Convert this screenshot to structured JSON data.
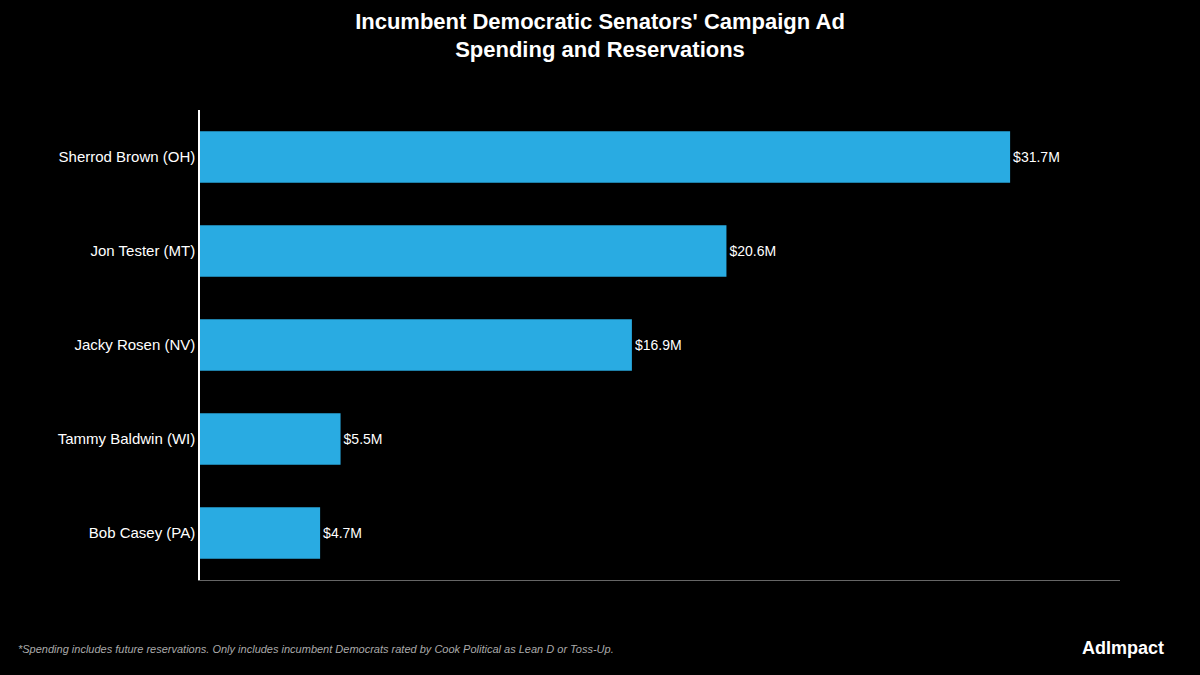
{
  "chart_data": {
    "type": "bar",
    "orientation": "horizontal",
    "title": "Incumbent Democratic Senators' Campaign Ad\nSpending and Reservations",
    "categories": [
      "Sherrod Brown (OH)",
      "Jon Tester (MT)",
      "Jacky Rosen (NV)",
      "Tammy Baldwin (WI)",
      "Bob Casey (PA)"
    ],
    "values": [
      31.7,
      20.6,
      16.9,
      5.5,
      4.7
    ],
    "value_labels": [
      "$31.7M",
      "$20.6M",
      "$16.9M",
      "$5.5M",
      "$4.7M"
    ],
    "color": "#29ABE2",
    "xlim": [
      0,
      36
    ],
    "data_labels": true,
    "tick_labels": "y",
    "grid": false,
    "annotations": [
      "*Spending includes future reservations. Only includes incumbent Democrats rated by Cook Political as Lean D or Toss-Up.",
      "AdImpact"
    ]
  }
}
